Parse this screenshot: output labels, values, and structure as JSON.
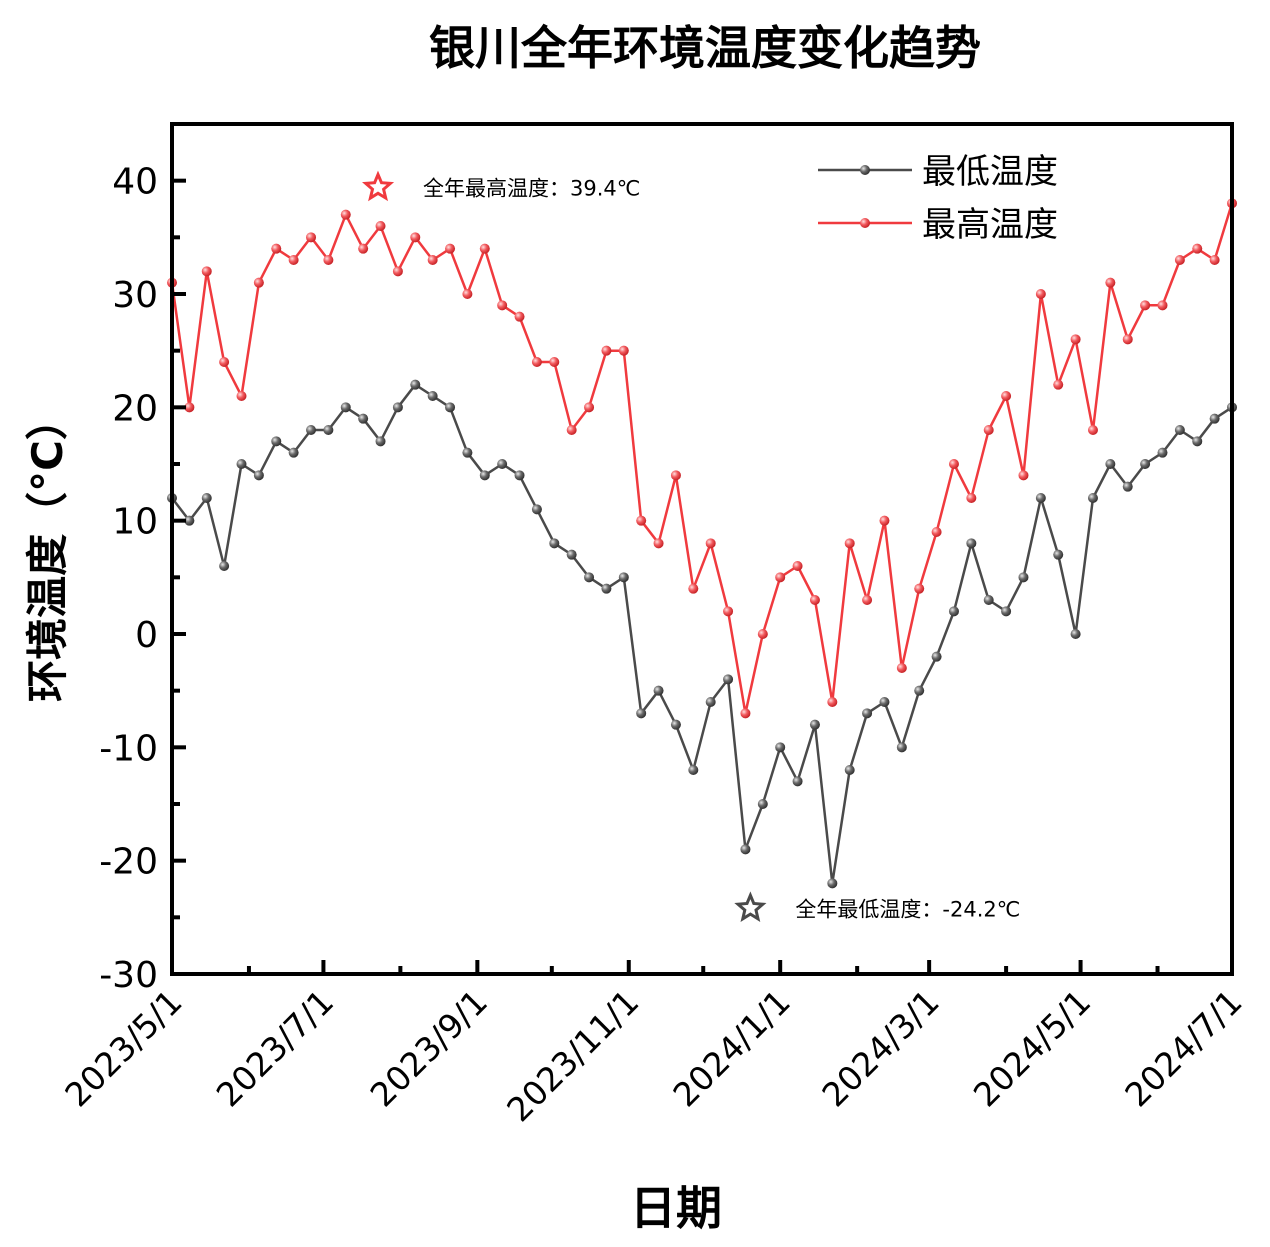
{
  "chart_data": {
    "type": "line",
    "title": "银川全年环境温度变化趋势",
    "xlabel": "日期",
    "ylabel": "环境温度（°C）",
    "xlim": [
      "2023-05-01",
      "2024-07-01"
    ],
    "ylim": [
      -30,
      45
    ],
    "yticks": [
      -30,
      -20,
      -10,
      0,
      10,
      20,
      30,
      40
    ],
    "ytick_labels": [
      "-30",
      "-20",
      "-10",
      "0",
      "10",
      "20",
      "30",
      "40"
    ],
    "xticks": [
      "2023-05-01",
      "2023-07-01",
      "2023-09-01",
      "2023-11-01",
      "2024-01-01",
      "2024-03-01",
      "2024-05-01",
      "2024-07-01"
    ],
    "xtick_labels": [
      "2023/5/1",
      "2023/7/1",
      "2023/9/1",
      "2023/11/1",
      "2024/1/1",
      "2024/3/1",
      "2024/5/1",
      "2024/7/1"
    ],
    "grid": false,
    "legend_position": "top-right",
    "x": [
      "2023-05-01",
      "2023-05-08",
      "2023-05-15",
      "2023-05-22",
      "2023-05-29",
      "2023-06-05",
      "2023-06-12",
      "2023-06-19",
      "2023-06-26",
      "2023-07-03",
      "2023-07-10",
      "2023-07-17",
      "2023-07-24",
      "2023-07-31",
      "2023-08-07",
      "2023-08-14",
      "2023-08-21",
      "2023-08-28",
      "2023-09-04",
      "2023-09-11",
      "2023-09-18",
      "2023-09-25",
      "2023-10-02",
      "2023-10-09",
      "2023-10-16",
      "2023-10-23",
      "2023-10-30",
      "2023-11-06",
      "2023-11-13",
      "2023-11-20",
      "2023-11-27",
      "2023-12-04",
      "2023-12-11",
      "2023-12-18",
      "2023-12-25",
      "2024-01-01",
      "2024-01-08",
      "2024-01-15",
      "2024-01-22",
      "2024-01-29",
      "2024-02-05",
      "2024-02-12",
      "2024-02-19",
      "2024-02-26",
      "2024-03-04",
      "2024-03-11",
      "2024-03-18",
      "2024-03-25",
      "2024-04-01",
      "2024-04-08",
      "2024-04-15",
      "2024-04-22",
      "2024-04-29",
      "2024-05-06",
      "2024-05-13",
      "2024-05-20",
      "2024-05-27",
      "2024-06-03",
      "2024-06-10",
      "2024-06-17",
      "2024-06-24",
      "2024-07-01"
    ],
    "series": [
      {
        "name": "最低温度",
        "color": "#4a4a4a",
        "values": [
          12,
          10,
          12,
          6,
          15,
          14,
          17,
          16,
          18,
          18,
          20,
          19,
          17,
          20,
          22,
          21,
          20,
          16,
          14,
          15,
          14,
          11,
          8,
          7,
          5,
          4,
          5,
          -7,
          -5,
          -8,
          -12,
          -6,
          -4,
          -19,
          -15,
          -10,
          -13,
          -8,
          -22,
          -12,
          -7,
          -6,
          -10,
          -5,
          -2,
          2,
          8,
          3,
          2,
          5,
          12,
          7,
          0,
          12,
          15,
          13,
          15,
          16,
          18,
          17,
          19,
          20
        ]
      },
      {
        "name": "最高温度",
        "color": "#f03a3e",
        "values": [
          31,
          20,
          32,
          24,
          21,
          31,
          34,
          33,
          35,
          33,
          37,
          34,
          36,
          32,
          35,
          33,
          34,
          30,
          34,
          29,
          28,
          24,
          24,
          18,
          20,
          25,
          25,
          10,
          8,
          14,
          4,
          8,
          2,
          -7,
          0,
          5,
          6,
          3,
          -6,
          8,
          3,
          10,
          -3,
          4,
          9,
          15,
          12,
          18,
          21,
          14,
          30,
          22,
          26,
          18,
          31,
          26,
          29,
          29,
          33,
          34,
          33,
          38
        ]
      }
    ],
    "annotations": [
      {
        "text": "全年最高温度：39.4℃",
        "x": "2023-07-23",
        "y": 39.4,
        "series": "最高温度",
        "marker": "star"
      },
      {
        "text": "全年最低温度：-24.2℃",
        "x": "2023-12-20",
        "y": -24.2,
        "series": "最低温度",
        "marker": "star"
      }
    ]
  }
}
